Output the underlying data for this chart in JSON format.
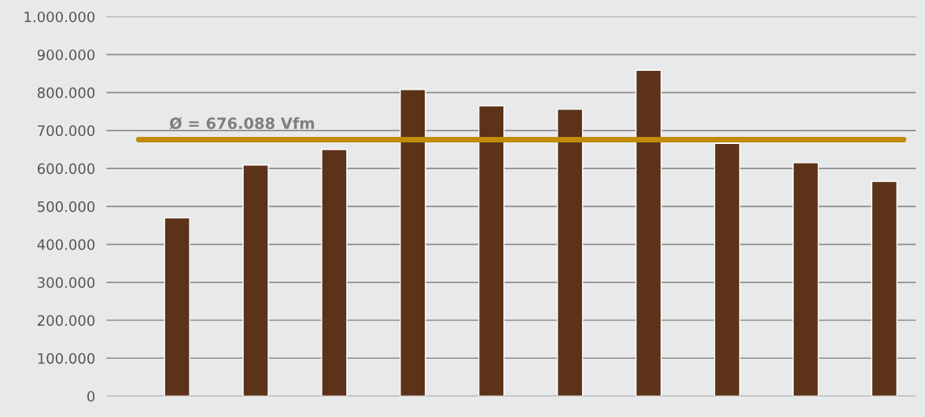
{
  "chart_data": {
    "type": "bar",
    "categories": [
      null,
      null,
      null,
      null,
      null,
      null,
      null,
      null,
      null,
      null
    ],
    "values": [
      470000,
      609000,
      650000,
      808000,
      765000,
      756000,
      859000,
      666000,
      615000,
      566000
    ],
    "color": "#5c3319",
    "ylim": [
      0,
      1000000
    ],
    "yticks": [
      {
        "value": 0,
        "label": "0"
      },
      {
        "value": 100000,
        "label": "100.000"
      },
      {
        "value": 200000,
        "label": "200.000"
      },
      {
        "value": 300000,
        "label": "300.000"
      },
      {
        "value": 400000,
        "label": "400.000"
      },
      {
        "value": 500000,
        "label": "500.000"
      },
      {
        "value": 600000,
        "label": "600.000"
      },
      {
        "value": 700000,
        "label": "700.000"
      },
      {
        "value": 800000,
        "label": "800.000"
      },
      {
        "value": 900000,
        "label": "900.000"
      },
      {
        "value": 1000000,
        "label": "1.000.000"
      }
    ],
    "grid": "y",
    "tick_labels": "y",
    "ref_lines": [
      {
        "axis": "y",
        "value": 676088,
        "label": "Ø = 676.088 Vfm",
        "color": "#c08c0a"
      }
    ]
  }
}
